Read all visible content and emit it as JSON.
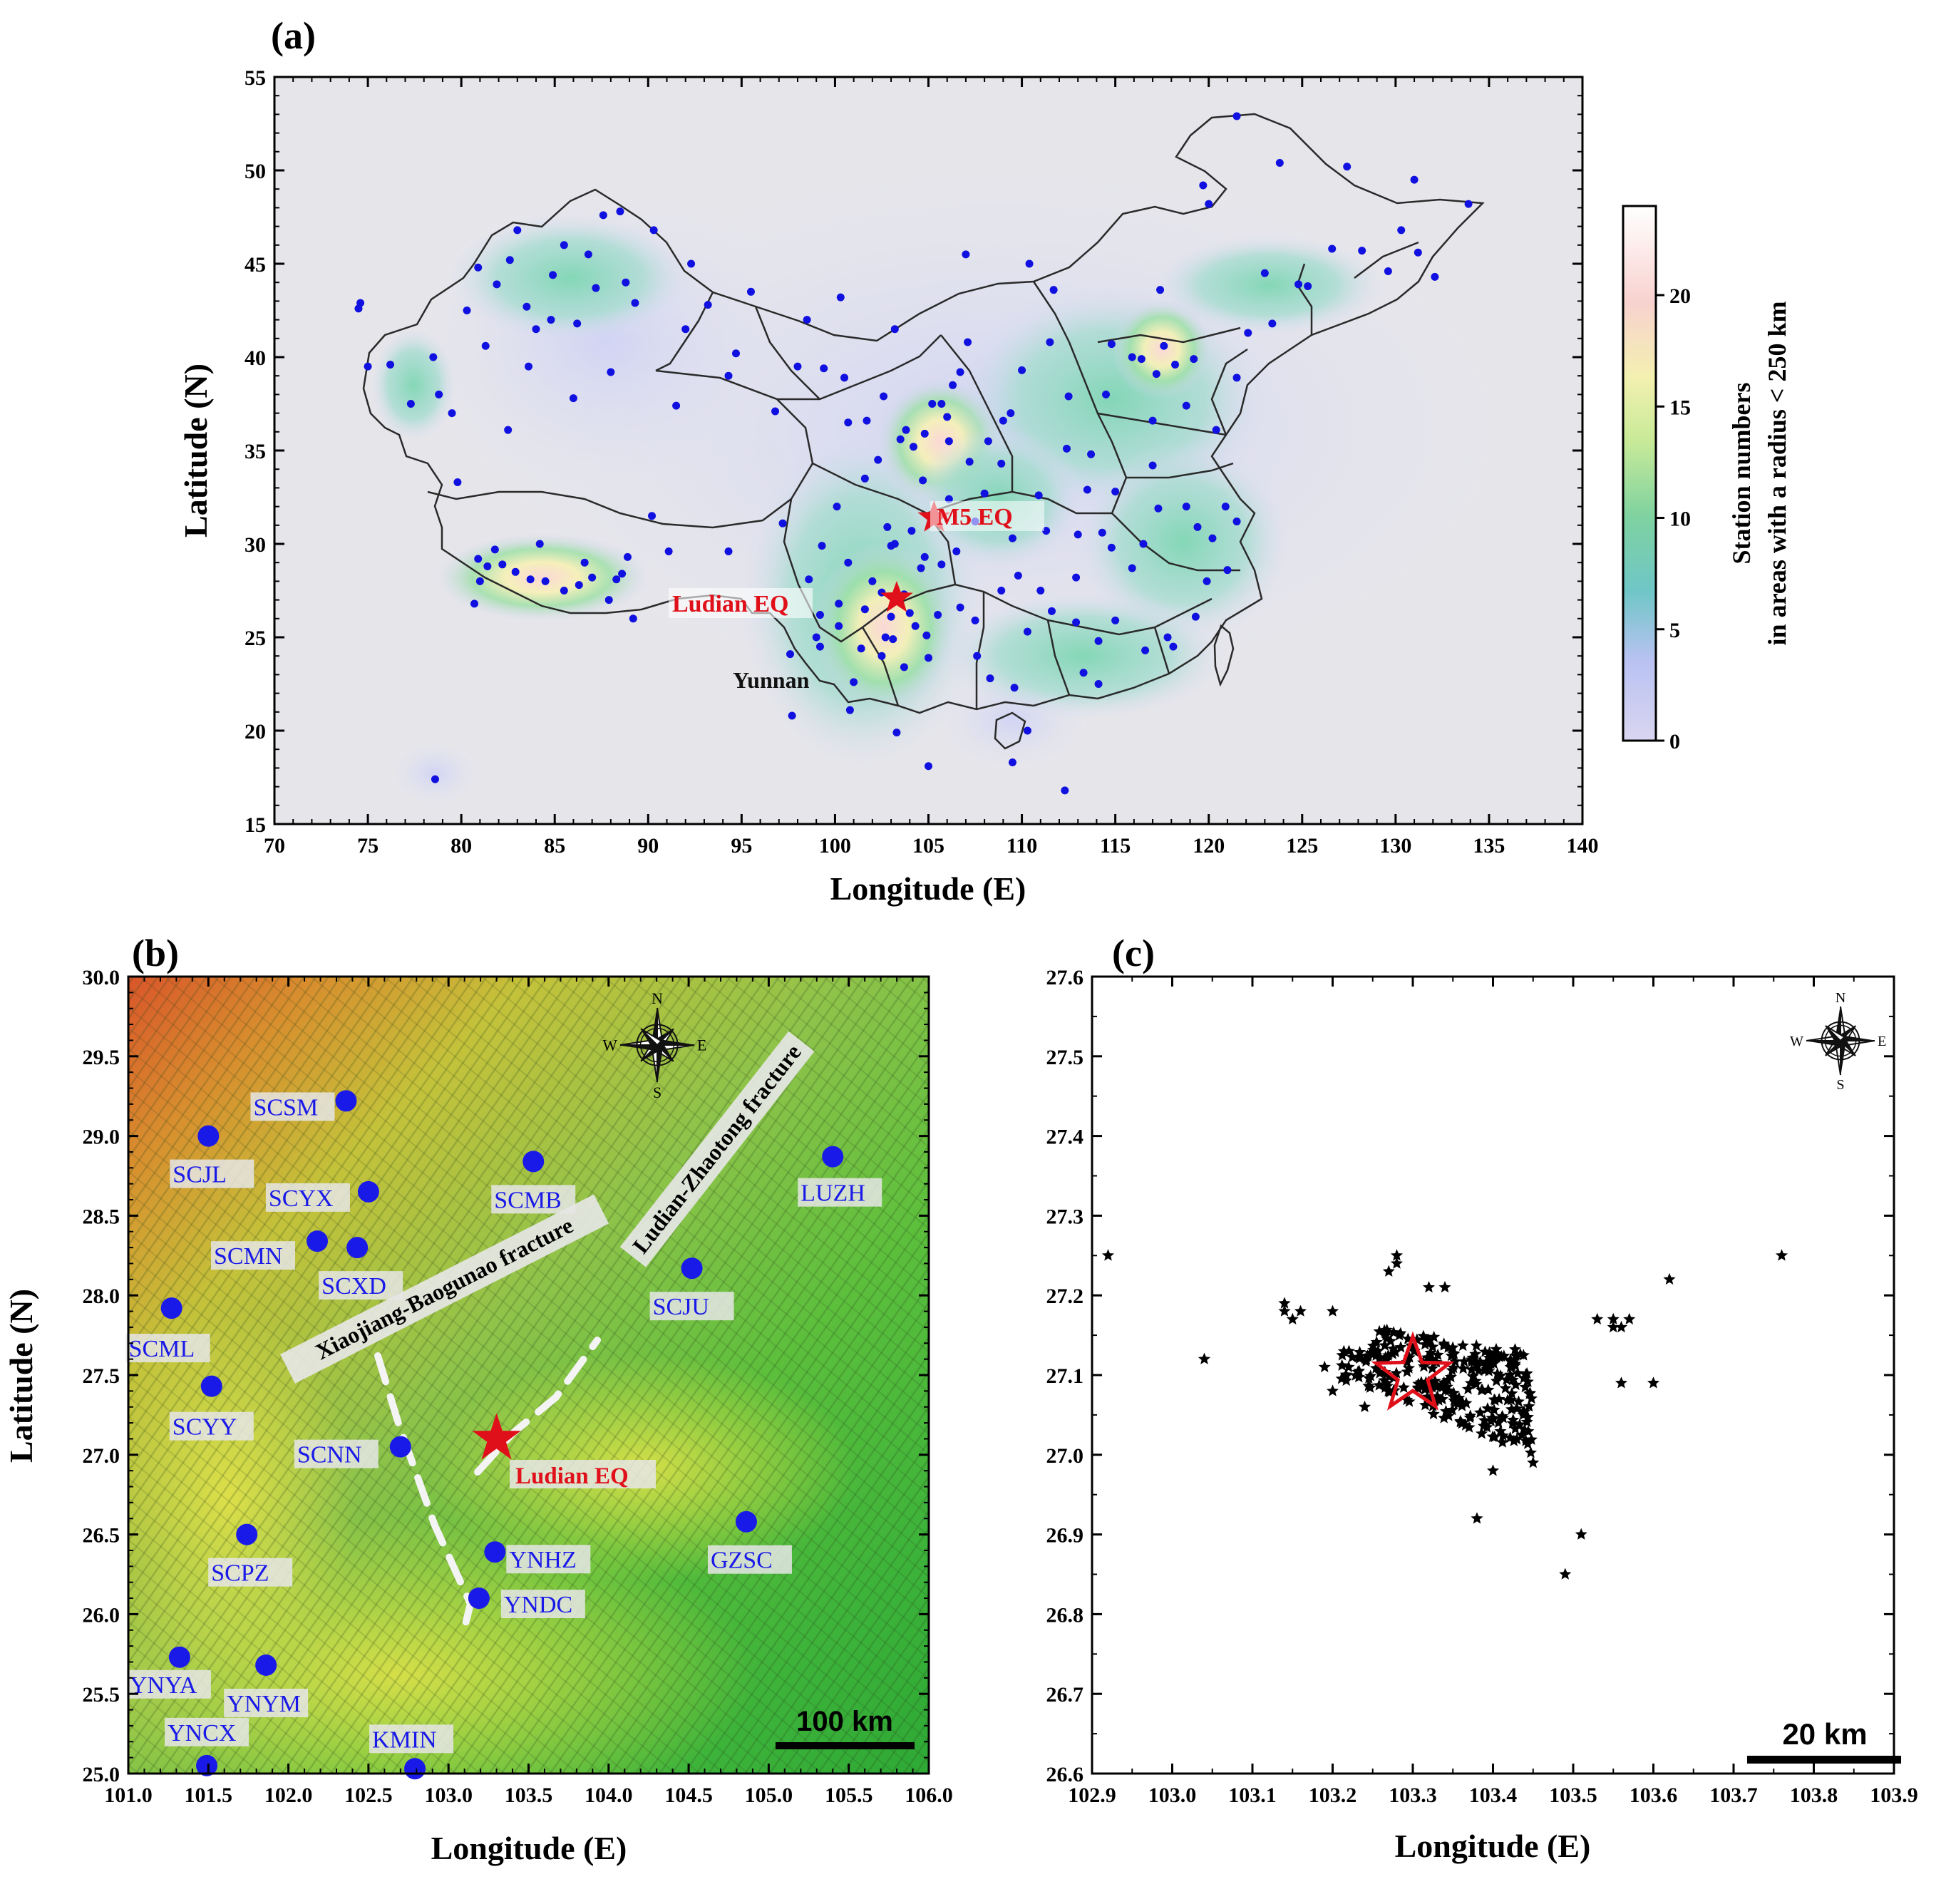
{
  "panel_a": {
    "label": "(a)",
    "xlabel": "Longitude (E)",
    "ylabel": "Latitude (N)",
    "xlim": [
      70,
      140
    ],
    "ylim": [
      15,
      55
    ],
    "xticks": [
      "70",
      "75",
      "80",
      "85",
      "90",
      "95",
      "100",
      "105",
      "110",
      "115",
      "120",
      "125",
      "130",
      "135",
      "140"
    ],
    "yticks": [
      "15",
      "20",
      "25",
      "30",
      "35",
      "40",
      "45",
      "50",
      "55"
    ],
    "annotations": {
      "m5": "M5 EQ",
      "ludian": "Ludian EQ",
      "yunnan": "Yunnan"
    },
    "events": [
      {
        "name": "M5 EQ",
        "lon": 105.3,
        "lat": 31.4
      },
      {
        "name": "Ludian EQ",
        "lon": 103.3,
        "lat": 27.1
      }
    ],
    "colorbar": {
      "title_line1": "Station numbers",
      "title_line2": "in areas with a radius < 250 km",
      "ticks": [
        "0",
        "5",
        "10",
        "15",
        "20"
      ],
      "range": [
        0,
        24
      ]
    },
    "stations": [
      [
        74.5,
        42.6
      ],
      [
        74.6,
        42.9
      ],
      [
        75.0,
        39.5
      ],
      [
        76.2,
        39.6
      ],
      [
        77.3,
        37.5
      ],
      [
        78.5,
        40.0
      ],
      [
        78.8,
        38.0
      ],
      [
        79.5,
        37.0
      ],
      [
        79.8,
        33.3
      ],
      [
        80.3,
        42.5
      ],
      [
        80.9,
        44.8
      ],
      [
        81.3,
        40.6
      ],
      [
        81.9,
        43.9
      ],
      [
        82.5,
        36.1
      ],
      [
        82.6,
        45.2
      ],
      [
        83.0,
        46.8
      ],
      [
        83.5,
        42.7
      ],
      [
        83.6,
        39.5
      ],
      [
        84.0,
        41.5
      ],
      [
        84.8,
        42.0
      ],
      [
        84.9,
        44.4
      ],
      [
        85.5,
        46.0
      ],
      [
        86.0,
        37.8
      ],
      [
        86.2,
        41.8
      ],
      [
        86.8,
        45.5
      ],
      [
        87.2,
        43.7
      ],
      [
        87.6,
        47.6
      ],
      [
        88.0,
        39.2
      ],
      [
        88.5,
        47.8
      ],
      [
        88.8,
        44.0
      ],
      [
        89.3,
        42.9
      ],
      [
        90.3,
        46.8
      ],
      [
        91.5,
        37.4
      ],
      [
        92.0,
        41.5
      ],
      [
        92.3,
        45.0
      ],
      [
        93.2,
        42.8
      ],
      [
        94.3,
        39.0
      ],
      [
        94.7,
        40.2
      ],
      [
        95.5,
        43.5
      ],
      [
        96.8,
        37.1
      ],
      [
        98.0,
        39.5
      ],
      [
        98.5,
        42.0
      ],
      [
        99.4,
        39.4
      ],
      [
        100.5,
        38.9
      ],
      [
        101.7,
        36.6
      ],
      [
        102.6,
        37.9
      ],
      [
        103.8,
        36.1
      ],
      [
        104.2,
        35.2
      ],
      [
        104.8,
        35.9
      ],
      [
        105.2,
        37.5
      ],
      [
        106.0,
        36.8
      ],
      [
        106.3,
        38.5
      ],
      [
        106.7,
        39.2
      ],
      [
        107.1,
        40.8
      ],
      [
        108.2,
        35.5
      ],
      [
        108.9,
        34.3
      ],
      [
        109.4,
        37.0
      ],
      [
        110.0,
        39.3
      ],
      [
        111.5,
        40.8
      ],
      [
        112.5,
        37.9
      ],
      [
        112.4,
        35.1
      ],
      [
        113.7,
        34.8
      ],
      [
        114.5,
        38.0
      ],
      [
        114.8,
        40.7
      ],
      [
        115.9,
        40.0
      ],
      [
        116.4,
        39.9
      ],
      [
        117.2,
        39.1
      ],
      [
        117.6,
        40.6
      ],
      [
        118.2,
        39.6
      ],
      [
        119.2,
        39.9
      ],
      [
        118.8,
        37.4
      ],
      [
        117.0,
        36.6
      ],
      [
        120.4,
        36.1
      ],
      [
        121.5,
        38.9
      ],
      [
        122.1,
        41.3
      ],
      [
        123.4,
        41.8
      ],
      [
        123.0,
        44.5
      ],
      [
        124.8,
        43.9
      ],
      [
        125.3,
        43.8
      ],
      [
        126.6,
        45.8
      ],
      [
        128.2,
        45.7
      ],
      [
        129.6,
        44.6
      ],
      [
        130.3,
        46.8
      ],
      [
        131.2,
        45.6
      ],
      [
        132.1,
        44.3
      ],
      [
        133.9,
        48.2
      ],
      [
        131.0,
        49.5
      ],
      [
        127.4,
        50.2
      ],
      [
        123.8,
        50.4
      ],
      [
        121.5,
        52.9
      ],
      [
        120.0,
        48.2
      ],
      [
        119.7,
        49.2
      ],
      [
        117.4,
        43.6
      ],
      [
        111.7,
        43.6
      ],
      [
        110.4,
        45.0
      ],
      [
        107.0,
        45.5
      ],
      [
        103.2,
        41.5
      ],
      [
        100.3,
        43.2
      ],
      [
        118.8,
        32.0
      ],
      [
        120.2,
        30.3
      ],
      [
        121.5,
        31.2
      ],
      [
        117.3,
        31.9
      ],
      [
        117.0,
        34.2
      ],
      [
        114.3,
        30.6
      ],
      [
        112.9,
        28.2
      ],
      [
        115.9,
        28.7
      ],
      [
        119.3,
        26.1
      ],
      [
        118.1,
        24.5
      ],
      [
        113.3,
        23.1
      ],
      [
        114.1,
        22.5
      ],
      [
        110.3,
        25.3
      ],
      [
        108.3,
        22.8
      ],
      [
        106.7,
        26.6
      ],
      [
        104.1,
        30.7
      ],
      [
        106.5,
        29.6
      ],
      [
        102.7,
        25.0
      ],
      [
        100.2,
        25.6
      ],
      [
        99.2,
        24.5
      ],
      [
        97.6,
        24.1
      ],
      [
        101.0,
        22.6
      ],
      [
        100.8,
        21.1
      ],
      [
        103.7,
        23.4
      ],
      [
        105.0,
        23.9
      ],
      [
        107.6,
        24.0
      ],
      [
        109.6,
        22.3
      ],
      [
        110.3,
        20.0
      ],
      [
        109.5,
        18.3
      ],
      [
        105.0,
        18.1
      ],
      [
        103.3,
        19.9
      ],
      [
        97.7,
        20.8
      ],
      [
        112.3,
        16.8
      ],
      [
        78.6,
        17.4
      ],
      [
        89.2,
        26.0
      ],
      [
        91.1,
        29.6
      ],
      [
        90.2,
        31.5
      ],
      [
        88.9,
        29.3
      ],
      [
        88.3,
        28.1
      ],
      [
        87.0,
        28.2
      ],
      [
        86.3,
        27.8
      ],
      [
        85.5,
        27.5
      ],
      [
        84.5,
        28.0
      ],
      [
        83.7,
        28.1
      ],
      [
        82.9,
        28.5
      ],
      [
        82.2,
        28.9
      ],
      [
        81.4,
        28.8
      ],
      [
        81.0,
        28.0
      ],
      [
        80.7,
        26.8
      ],
      [
        80.9,
        29.2
      ],
      [
        81.8,
        29.7
      ],
      [
        84.2,
        30.0
      ],
      [
        86.6,
        29.0
      ],
      [
        87.9,
        27.0
      ],
      [
        88.6,
        28.4
      ],
      [
        94.3,
        29.6
      ],
      [
        97.2,
        31.1
      ],
      [
        99.3,
        29.9
      ],
      [
        100.1,
        32.0
      ],
      [
        101.6,
        33.5
      ],
      [
        102.3,
        34.5
      ],
      [
        100.7,
        36.5
      ],
      [
        103.5,
        35.6
      ],
      [
        104.7,
        33.4
      ],
      [
        106.1,
        32.4
      ],
      [
        108.0,
        32.7
      ],
      [
        110.9,
        32.6
      ],
      [
        111.3,
        30.7
      ],
      [
        109.5,
        30.3
      ],
      [
        107.5,
        31.2
      ],
      [
        105.7,
        28.9
      ],
      [
        104.6,
        28.7
      ],
      [
        103.0,
        29.9
      ],
      [
        102.0,
        28.0
      ],
      [
        102.5,
        27.4
      ],
      [
        103.7,
        27.3
      ],
      [
        104.0,
        26.3
      ],
      [
        104.9,
        25.1
      ],
      [
        103.0,
        26.1
      ],
      [
        101.6,
        26.5
      ],
      [
        100.2,
        26.8
      ],
      [
        99.2,
        26.2
      ],
      [
        99.0,
        25.0
      ],
      [
        101.4,
        24.4
      ],
      [
        102.5,
        24.0
      ],
      [
        103.1,
        24.9
      ],
      [
        104.3,
        25.6
      ],
      [
        105.5,
        26.2
      ],
      [
        107.5,
        25.9
      ],
      [
        108.9,
        27.5
      ],
      [
        109.8,
        28.3
      ],
      [
        111.0,
        27.5
      ],
      [
        111.6,
        26.4
      ],
      [
        112.9,
        25.8
      ],
      [
        114.1,
        24.8
      ],
      [
        115.0,
        25.9
      ],
      [
        116.6,
        24.3
      ],
      [
        117.8,
        25.0
      ],
      [
        119.9,
        28.0
      ],
      [
        121.0,
        28.6
      ],
      [
        119.4,
        30.9
      ],
      [
        120.9,
        32.0
      ],
      [
        115.0,
        32.8
      ],
      [
        113.5,
        32.9
      ],
      [
        114.8,
        29.8
      ],
      [
        116.5,
        30.0
      ],
      [
        113.0,
        30.5
      ],
      [
        107.2,
        34.4
      ],
      [
        109.0,
        36.6
      ],
      [
        105.7,
        37.5
      ],
      [
        106.1,
        35.5
      ],
      [
        103.2,
        30.0
      ],
      [
        102.8,
        30.9
      ],
      [
        104.8,
        29.3
      ],
      [
        100.7,
        29.0
      ],
      [
        98.6,
        28.1
      ]
    ]
  },
  "panel_b": {
    "label": "(b)",
    "xlabel": "Longitude (E)",
    "ylabel": "Latitude (N)",
    "xlim": [
      101.0,
      106.0
    ],
    "ylim": [
      25.0,
      30.0
    ],
    "xticks": [
      "101.0",
      "101.5",
      "102.0",
      "102.5",
      "103.0",
      "103.5",
      "104.0",
      "104.5",
      "105.0",
      "105.5",
      "106.0"
    ],
    "yticks": [
      "25.0",
      "25.5",
      "26.0",
      "26.5",
      "27.0",
      "27.5",
      "28.0",
      "28.5",
      "29.0",
      "29.5",
      "30.0"
    ],
    "scalebar": "100 km",
    "compass": {
      "n": "N",
      "s": "S",
      "e": "E",
      "w": "W"
    },
    "fractures": {
      "xiaojiang": "Xiaojiang-Baogunao fracture",
      "ludian_zhaotong": "Ludian-Zhaotong fracture"
    },
    "epicenter": {
      "label": "Ludian EQ",
      "lon": 103.3,
      "lat": 27.1
    },
    "stations": [
      {
        "code": "SCSM",
        "lon": 102.36,
        "lat": 29.22
      },
      {
        "code": "SCJL",
        "lon": 101.5,
        "lat": 29.0
      },
      {
        "code": "SCMB",
        "lon": 103.53,
        "lat": 28.84
      },
      {
        "code": "LUZH",
        "lon": 105.4,
        "lat": 28.87
      },
      {
        "code": "SCYX",
        "lon": 102.5,
        "lat": 28.65
      },
      {
        "code": "SCMN",
        "lon": 102.18,
        "lat": 28.34
      },
      {
        "code": "SCXD",
        "lon": 102.43,
        "lat": 28.3
      },
      {
        "code": "SCJU",
        "lon": 104.52,
        "lat": 28.17
      },
      {
        "code": "SCML",
        "lon": 101.27,
        "lat": 27.92
      },
      {
        "code": "SCYY",
        "lon": 101.52,
        "lat": 27.43
      },
      {
        "code": "SCNN",
        "lon": 102.7,
        "lat": 27.05
      },
      {
        "code": "SCPZ",
        "lon": 101.74,
        "lat": 26.5
      },
      {
        "code": "GZSC",
        "lon": 104.86,
        "lat": 26.58
      },
      {
        "code": "YNHZ",
        "lon": 103.29,
        "lat": 26.39
      },
      {
        "code": "YNDC",
        "lon": 103.19,
        "lat": 26.1
      },
      {
        "code": "YNYA",
        "lon": 101.32,
        "lat": 25.73
      },
      {
        "code": "YNYM",
        "lon": 101.86,
        "lat": 25.68
      },
      {
        "code": "YNCX",
        "lon": 101.49,
        "lat": 25.05
      },
      {
        "code": "KMIN",
        "lon": 102.79,
        "lat": 25.03
      }
    ]
  },
  "panel_c": {
    "label": "(c)",
    "xlabel": "Longitude (E)",
    "xlim": [
      102.9,
      103.9
    ],
    "ylim": [
      26.6,
      27.6
    ],
    "xticks": [
      "102.9",
      "103.0",
      "103.1",
      "103.2",
      "103.3",
      "103.4",
      "103.5",
      "103.6",
      "103.7",
      "103.8",
      "103.9"
    ],
    "yticks": [
      "26.6",
      "26.7",
      "26.8",
      "26.9",
      "27.0",
      "27.1",
      "27.2",
      "27.3",
      "27.4",
      "27.5",
      "27.6"
    ],
    "scalebar": "20 km",
    "compass": {
      "n": "N",
      "s": "S",
      "e": "E",
      "w": "W"
    },
    "mainshock": {
      "lon": 103.3,
      "lat": 27.1
    },
    "outlier_events": [
      [
        102.92,
        27.25
      ],
      [
        103.04,
        27.12
      ],
      [
        103.14,
        27.19
      ],
      [
        103.15,
        27.17
      ],
      [
        103.16,
        27.18
      ],
      [
        103.14,
        27.18
      ],
      [
        103.2,
        27.18
      ],
      [
        103.27,
        27.23
      ],
      [
        103.28,
        27.25
      ],
      [
        103.28,
        27.24
      ],
      [
        103.32,
        27.21
      ],
      [
        103.34,
        27.21
      ],
      [
        103.53,
        27.17
      ],
      [
        103.55,
        27.17
      ],
      [
        103.56,
        27.16
      ],
      [
        103.57,
        27.17
      ],
      [
        103.55,
        27.16
      ],
      [
        103.62,
        27.22
      ],
      [
        103.76,
        27.25
      ],
      [
        103.56,
        27.09
      ],
      [
        103.6,
        27.09
      ],
      [
        103.38,
        26.92
      ],
      [
        103.49,
        26.85
      ],
      [
        103.51,
        26.9
      ],
      [
        103.4,
        26.98
      ],
      [
        103.45,
        26.99
      ],
      [
        103.2,
        27.08
      ],
      [
        103.24,
        27.06
      ],
      [
        103.22,
        27.11
      ],
      [
        103.19,
        27.11
      ]
    ],
    "cluster": {
      "lon_min": 103.2,
      "lon_max": 103.45,
      "lat_min": 27.0,
      "lat_max": 27.17
    }
  }
}
